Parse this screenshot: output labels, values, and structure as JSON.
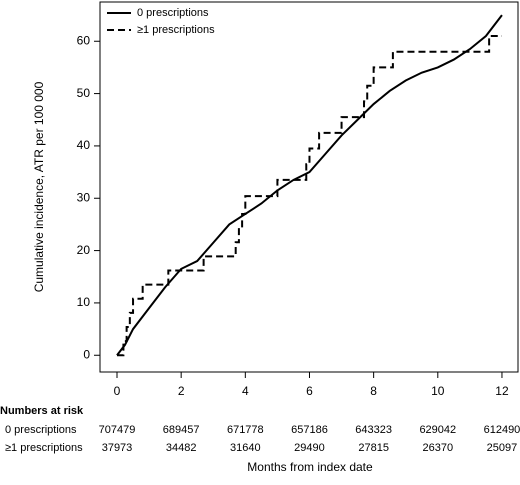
{
  "chart_data": {
    "type": "line",
    "y_label": "Cumulative incidence, ATR per 100 000",
    "x_label": "Months from index date",
    "xlim": [
      -0.53,
      12.5
    ],
    "ylim": [
      -3.2,
      67.5
    ],
    "xticks": [
      0,
      2,
      4,
      6,
      8,
      10,
      12
    ],
    "yticks": [
      0,
      10,
      20,
      30,
      40,
      50,
      60
    ],
    "legend": "upper left",
    "series": [
      {
        "name": "0 prescriptions",
        "color": "#000000",
        "dash": "solid",
        "step": false,
        "x": [
          0,
          0.25,
          0.5,
          1,
          1.5,
          2,
          2.5,
          3,
          3.5,
          4,
          4.5,
          5,
          5.5,
          6,
          6.5,
          7,
          7.5,
          8,
          8.5,
          9,
          9.5,
          10,
          10.5,
          11,
          11.5,
          12
        ],
        "values": [
          0,
          2,
          5,
          9,
          13,
          16.5,
          18,
          21.5,
          25,
          27,
          29,
          31.5,
          33.5,
          35,
          38.5,
          42,
          45,
          48,
          50.5,
          52.5,
          54,
          55,
          56.5,
          58.5,
          61,
          65
        ]
      },
      {
        "name": "≥1 prescriptions",
        "color": "#000000",
        "dash": "dashed",
        "step": true,
        "x": [
          0,
          0.2,
          0.3,
          0.4,
          0.5,
          0.8,
          1.6,
          2.7,
          3.7,
          3.8,
          3.9,
          4.0,
          5.0,
          5.9,
          6.0,
          6.3,
          7.0,
          7.7,
          7.8,
          8.0,
          8.6,
          11.6,
          12
        ],
        "values": [
          0,
          2.7,
          5.4,
          8.1,
          10.8,
          13.5,
          16.2,
          18.9,
          21.6,
          24.3,
          27,
          30.4,
          33.5,
          36.5,
          39.5,
          42.5,
          45.5,
          48.5,
          51.5,
          55,
          58,
          61,
          61
        ]
      }
    ],
    "risk_table": {
      "title": "Numbers at risk",
      "rows": [
        {
          "label": "0 prescriptions",
          "values": [
            707479,
            689457,
            671778,
            657186,
            643323,
            629042,
            612490
          ]
        },
        {
          "label": "≥1 prescriptions",
          "values": [
            37973,
            34482,
            31640,
            29490,
            27815,
            26370,
            25097
          ]
        }
      ]
    }
  }
}
